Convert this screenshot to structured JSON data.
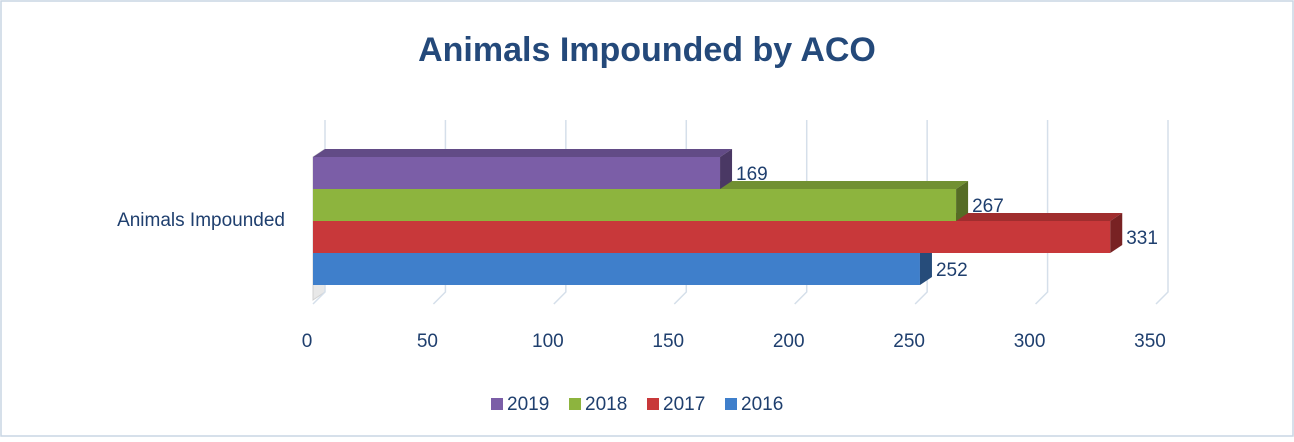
{
  "chart_data": {
    "type": "bar",
    "orientation": "horizontal",
    "title": "Animals Impounded by ACO",
    "categories": [
      "Animals Impounded"
    ],
    "series": [
      {
        "name": "2019",
        "color": "#7b5ea7",
        "values": [
          169
        ]
      },
      {
        "name": "2018",
        "color": "#8db43e",
        "values": [
          267
        ]
      },
      {
        "name": "2017",
        "color": "#c8383a",
        "values": [
          331
        ]
      },
      {
        "name": "2016",
        "color": "#3f7fcb",
        "values": [
          252
        ]
      }
    ],
    "xlim": [
      0,
      350
    ],
    "xticks": [
      0,
      50,
      100,
      150,
      200,
      250,
      300,
      350
    ],
    "grid": true,
    "legend": "bottom"
  }
}
